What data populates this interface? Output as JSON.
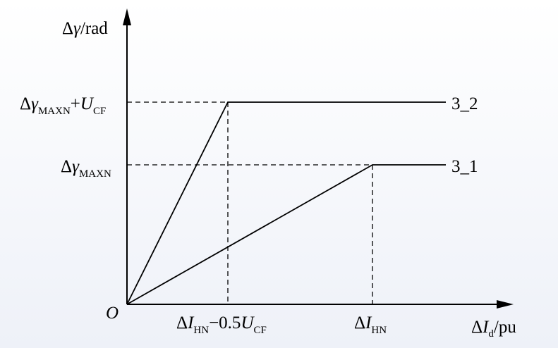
{
  "y_axis_label": [
    "Δ",
    "γ",
    "/rad"
  ],
  "x_axis_label": [
    "Δ",
    "I",
    "d",
    "/pu"
  ],
  "origin_label": "O",
  "y_levels": [
    {
      "label": [
        "Δ",
        "γ",
        "MAXN",
        "+",
        "U",
        "CF"
      ],
      "curve": "3_2"
    },
    {
      "label": [
        "Δ",
        "γ",
        "MAXN"
      ],
      "curve": "3_1"
    }
  ],
  "x_marks": [
    [
      "Δ",
      "I",
      "HN",
      "−0.5",
      "U",
      "CF"
    ],
    [
      "Δ",
      "I",
      "HN"
    ]
  ]
}
